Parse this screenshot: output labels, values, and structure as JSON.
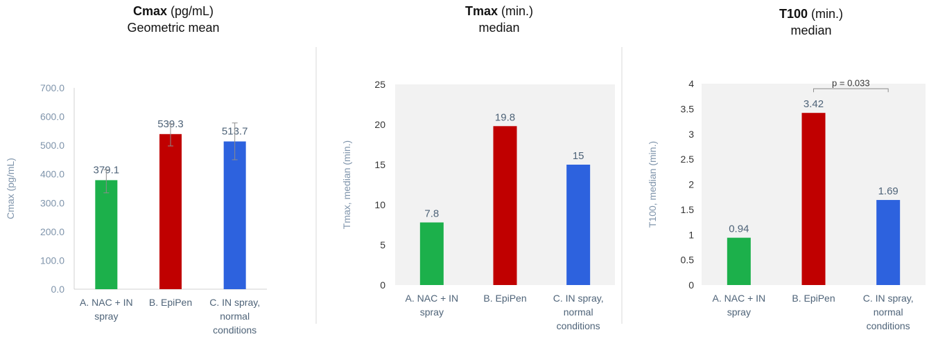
{
  "colors": {
    "green": "#1cb04b",
    "red": "#c00000",
    "blue": "#2d62de",
    "axis": "#7f94ab",
    "label": "#4e6378",
    "divider": "#d9d9d9"
  },
  "chart_data": [
    {
      "type": "bar",
      "title_bold": "Cmax",
      "title_rest": " (pg/mL)",
      "subtitle": "Geometric mean",
      "ylabel": "Cmax (pg/mL)",
      "ylim": [
        0,
        700
      ],
      "yticks": [
        "0.0",
        "100.0",
        "200.0",
        "300.0",
        "400.0",
        "500.0",
        "600.0",
        "700.0"
      ],
      "ytick_values": [
        0,
        100,
        200,
        300,
        400,
        500,
        600,
        700
      ],
      "categories": [
        [
          "A. NAC + IN",
          "spray"
        ],
        [
          "B. EpiPen"
        ],
        [
          "C. IN spray,",
          "normal",
          "conditions"
        ]
      ],
      "values": [
        379.1,
        539.3,
        513.7
      ],
      "labels": [
        "379.1",
        "539.3",
        "513.7"
      ],
      "error_low": [
        335,
        498,
        450
      ],
      "error_high": [
        415,
        575,
        578
      ],
      "bar_colors": [
        "#1cb04b",
        "#c00000",
        "#2d62de"
      ],
      "plot_bg": "#ffffff"
    },
    {
      "type": "bar",
      "title_bold": "Tmax",
      "title_rest": " (min.)",
      "subtitle": "median",
      "ylabel": "Tmax, median (min.)",
      "ylim": [
        0,
        25
      ],
      "yticks": [
        "0",
        "5",
        "10",
        "15",
        "20",
        "25"
      ],
      "ytick_values": [
        0,
        5,
        10,
        15,
        20,
        25
      ],
      "categories": [
        [
          "A. NAC + IN",
          "spray"
        ],
        [
          "B. EpiPen"
        ],
        [
          "C. IN spray,",
          "normal",
          "conditions"
        ]
      ],
      "values": [
        7.8,
        19.8,
        15
      ],
      "labels": [
        "7.8",
        "19.8",
        "15"
      ],
      "bar_colors": [
        "#1cb04b",
        "#c00000",
        "#2d62de"
      ],
      "plot_bg": "#f2f2f2"
    },
    {
      "type": "bar",
      "title_bold": "T100",
      "title_rest": " (min.)",
      "subtitle": "median",
      "ylabel": "T100, median (min.)",
      "ylim": [
        0,
        4
      ],
      "yticks": [
        "0",
        "0.5",
        "1",
        "1.5",
        "2",
        "2.5",
        "3",
        "3.5",
        "4"
      ],
      "ytick_values": [
        0,
        0.5,
        1,
        1.5,
        2,
        2.5,
        3,
        3.5,
        4
      ],
      "categories": [
        [
          "A. NAC + IN",
          "spray"
        ],
        [
          "B. EpiPen"
        ],
        [
          "C. IN spray,",
          "normal",
          "conditions"
        ]
      ],
      "values": [
        0.94,
        3.42,
        1.69
      ],
      "labels": [
        "0.94",
        "3.42",
        "1.69"
      ],
      "bar_colors": [
        "#1cb04b",
        "#c00000",
        "#2d62de"
      ],
      "plot_bg": "#f2f2f2",
      "annotation": {
        "text": "p = 0.033",
        "from": 1,
        "to": 2,
        "y": 3.9
      }
    }
  ]
}
